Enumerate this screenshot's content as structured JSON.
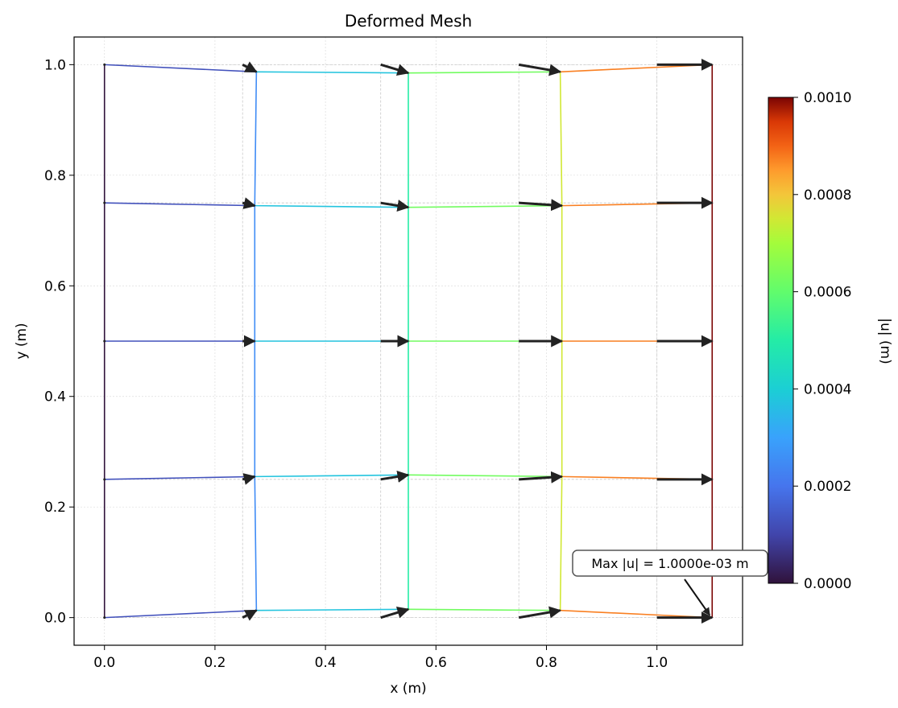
{
  "chart_data": {
    "type": "mesh",
    "title": "Deformed Mesh",
    "xlabel": "x (m)",
    "ylabel": "y (m)",
    "xlim": [
      -0.055,
      1.155
    ],
    "ylim": [
      -0.05,
      1.05
    ],
    "xticks": [
      0.0,
      0.2,
      0.4,
      0.6,
      0.8,
      1.0
    ],
    "yticks": [
      0.0,
      0.2,
      0.4,
      0.6,
      0.8,
      1.0
    ],
    "xtick_labels": [
      "0.0",
      "0.2",
      "0.4",
      "0.6",
      "0.8",
      "1.0"
    ],
    "ytick_labels": [
      "0.0",
      "0.2",
      "0.4",
      "0.6",
      "0.8",
      "1.0"
    ],
    "grid": true,
    "colormap": "turbo",
    "colorbar": {
      "label": "|u| (m)",
      "min": 0.0,
      "max": 0.001,
      "ticks": [
        0.0,
        0.0002,
        0.0004,
        0.0006,
        0.0008,
        0.001
      ],
      "tick_labels": [
        "0.0000",
        "0.0002",
        "0.0004",
        "0.0006",
        "0.0008",
        "0.0010"
      ]
    },
    "undeformed_x": [
      0.0,
      0.25,
      0.5,
      0.75,
      1.0
    ],
    "undeformed_y": [
      0.0,
      0.25,
      0.5,
      0.75,
      1.0
    ],
    "deformed_nodes": [
      [
        [
          0.0,
          0.0
        ],
        [
          0.275,
          0.013
        ],
        [
          0.55,
          0.015
        ],
        [
          0.825,
          0.013
        ],
        [
          1.1,
          0.0
        ]
      ],
      [
        [
          0.0,
          0.25
        ],
        [
          0.272,
          0.255
        ],
        [
          0.55,
          0.258
        ],
        [
          0.828,
          0.255
        ],
        [
          1.1,
          0.25
        ]
      ],
      [
        [
          0.0,
          0.5
        ],
        [
          0.272,
          0.5
        ],
        [
          0.55,
          0.5
        ],
        [
          0.828,
          0.5
        ],
        [
          1.1,
          0.5
        ]
      ],
      [
        [
          0.0,
          0.75
        ],
        [
          0.272,
          0.745
        ],
        [
          0.55,
          0.742
        ],
        [
          0.828,
          0.745
        ],
        [
          1.1,
          0.75
        ]
      ],
      [
        [
          0.0,
          1.0
        ],
        [
          0.275,
          0.987
        ],
        [
          0.55,
          0.985
        ],
        [
          0.825,
          0.987
        ],
        [
          1.1,
          1.0
        ]
      ]
    ],
    "column_displacement": [
      0.0,
      0.00025,
      0.0005,
      0.00075,
      0.001
    ],
    "annotation": {
      "text": "Max |u| = 1.0000e-03 m",
      "target": [
        1.1,
        0.0
      ],
      "text_position": [
        1.02,
        0.1
      ]
    }
  }
}
